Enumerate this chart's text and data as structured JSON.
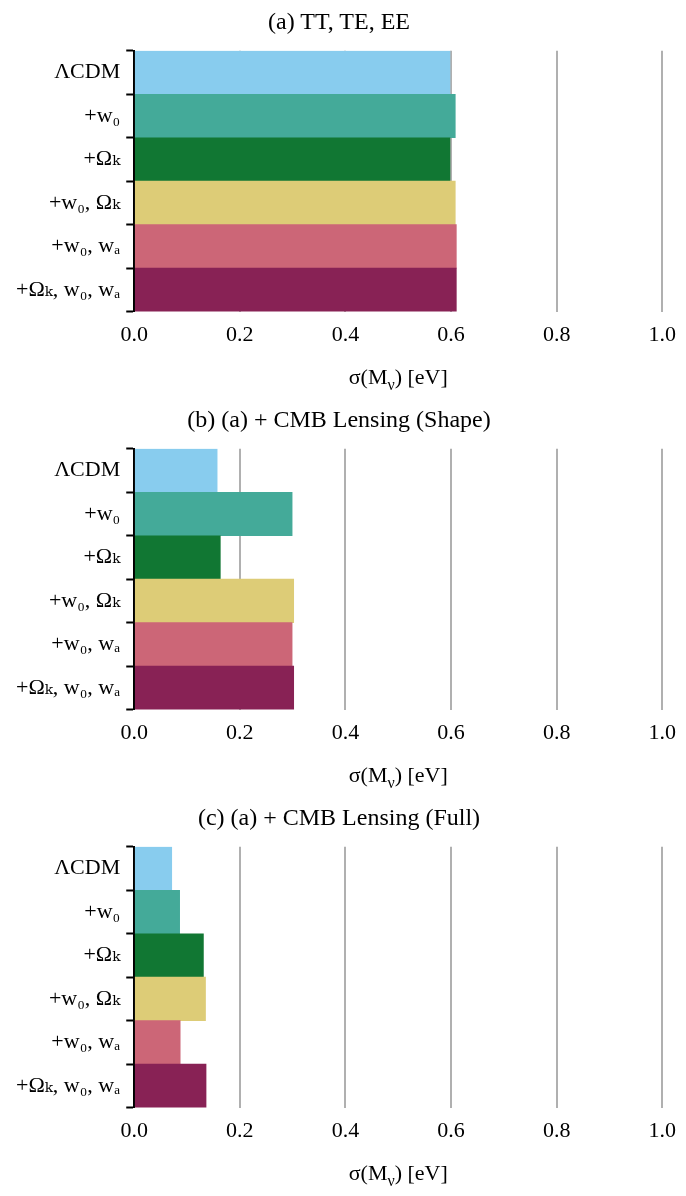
{
  "chart_data": [
    {
      "type": "bar",
      "orientation": "horizontal",
      "title": "(a) TT, TE, EE",
      "xlabel": "σ(M$_{ν}$) [eV]",
      "categories": [
        "ΛCDM",
        "+w₀",
        "+Ωₖ",
        "+w₀, Ωₖ",
        "+w₀, wₐ",
        "+Ωₖ, w₀, wₐ"
      ],
      "values": [
        0.598,
        0.608,
        0.598,
        0.608,
        0.61,
        0.61
      ],
      "colors": [
        "#88ccee",
        "#44aa99",
        "#117733",
        "#ddcc77",
        "#cc6677",
        "#882255"
      ],
      "xlim": [
        0,
        1.0
      ],
      "xticks": [
        {
          "value": 0,
          "label": "0.0"
        },
        {
          "value": 0.2,
          "label": "0.2"
        },
        {
          "value": 0.4,
          "label": "0.4"
        },
        {
          "value": 0.6,
          "label": "0.6"
        },
        {
          "value": 0.8,
          "label": "0.8"
        },
        {
          "value": 1.0,
          "label": "1.0"
        }
      ],
      "grid": "x"
    },
    {
      "type": "bar",
      "orientation": "horizontal",
      "title": "(b) (a) + CMB Lensing (Shape)",
      "xlabel": "σ(M$_{ν}$) [eV]",
      "categories": [
        "ΛCDM",
        "+w₀",
        "+Ωₖ",
        "+w₀, Ωₖ",
        "+w₀, wₐ",
        "+Ωₖ, w₀, wₐ"
      ],
      "values": [
        0.157,
        0.299,
        0.163,
        0.302,
        0.299,
        0.302
      ],
      "colors": [
        "#88ccee",
        "#44aa99",
        "#117733",
        "#ddcc77",
        "#cc6677",
        "#882255"
      ],
      "xlim": [
        0,
        1.0
      ],
      "xticks": [
        {
          "value": 0,
          "label": "0.0"
        },
        {
          "value": 0.2,
          "label": "0.2"
        },
        {
          "value": 0.4,
          "label": "0.4"
        },
        {
          "value": 0.6,
          "label": "0.6"
        },
        {
          "value": 0.8,
          "label": "0.8"
        },
        {
          "value": 1.0,
          "label": "1.0"
        }
      ],
      "grid": "x"
    },
    {
      "type": "bar",
      "orientation": "horizontal",
      "title": "(c) (a) + CMB Lensing (Full)",
      "xlabel": "σ(M$_{ν}$) [eV]",
      "categories": [
        "ΛCDM",
        "+w₀",
        "+Ωₖ",
        "+w₀, Ωₖ",
        "+w₀, wₐ",
        "+Ωₖ, w₀, wₐ"
      ],
      "values": [
        0.071,
        0.086,
        0.131,
        0.135,
        0.087,
        0.136
      ],
      "colors": [
        "#88ccee",
        "#44aa99",
        "#117733",
        "#ddcc77",
        "#cc6677",
        "#882255"
      ],
      "xlim": [
        0,
        1.0
      ],
      "xticks": [
        {
          "value": 0,
          "label": "0.0"
        },
        {
          "value": 0.2,
          "label": "0.2"
        },
        {
          "value": 0.4,
          "label": "0.4"
        },
        {
          "value": 0.6,
          "label": "0.6"
        },
        {
          "value": 0.8,
          "label": "0.8"
        },
        {
          "value": 1.0,
          "label": "1.0"
        }
      ],
      "grid": "x"
    }
  ]
}
